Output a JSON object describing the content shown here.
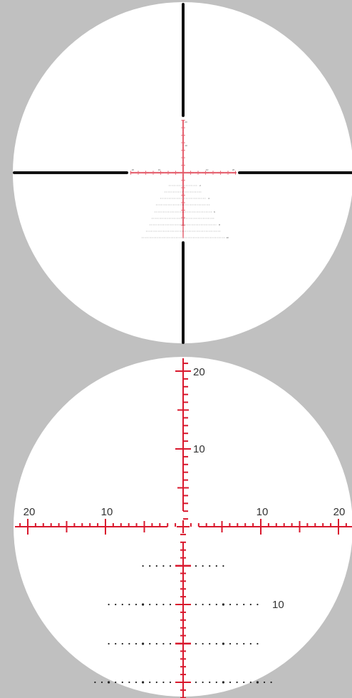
{
  "colors": {
    "background": "#c0c0c0",
    "lens": "#ffffff",
    "post": "#111111",
    "reticle": "#d9182d",
    "dots": "#222222",
    "label_text": "#333333"
  },
  "reticle": {
    "vertical_labels": [
      "20",
      "10"
    ],
    "horizontal_labels": [
      "20",
      "10",
      "10",
      "20"
    ],
    "holdover_labels": [
      "10"
    ]
  },
  "overview_labels": {
    "horizontal": [
      "20",
      "10",
      "10",
      "20"
    ],
    "vertical": [
      "20",
      "10"
    ],
    "holdover": [
      "2",
      "4",
      "6",
      "8",
      "10"
    ]
  }
}
